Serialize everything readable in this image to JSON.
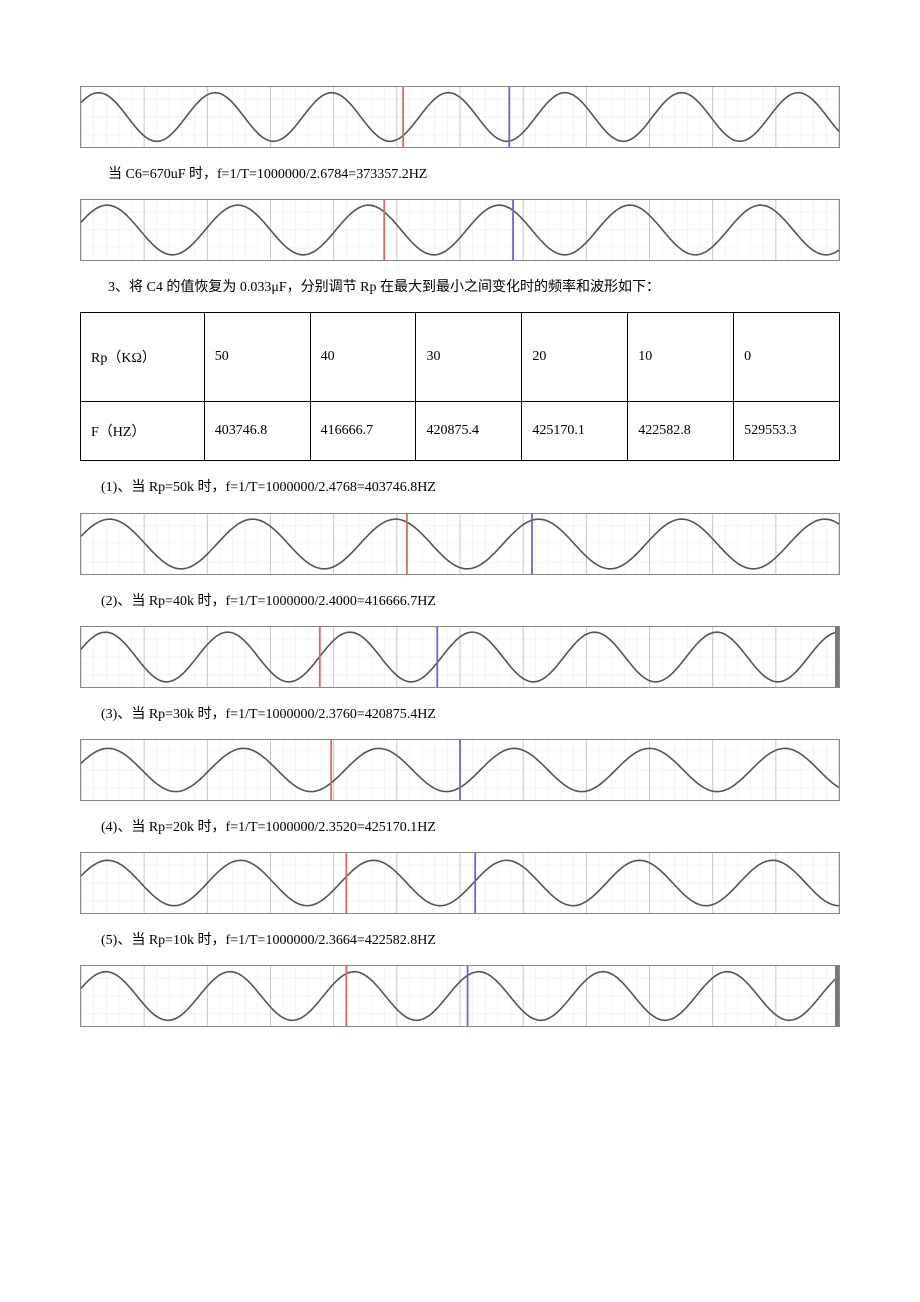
{
  "waveform_style": {
    "background_color": "#ffffff",
    "grid_major_color": "#c8c8c8",
    "grid_minor_color": "#e8e8e8",
    "wave_color": "#555555",
    "cursor1_color": "#e06666",
    "cursor2_color": "#6666e0",
    "wave_stroke_width": 1.6,
    "cursor_stroke_width": 1.8,
    "grid_stroke_width": 1,
    "minor_stroke_width": 0.5
  },
  "waveforms": {
    "wf_top": {
      "cycles": 6.5,
      "phase": 0.1,
      "amp": 0.9,
      "cursor1_x": 0.425,
      "cursor2_x": 0.565,
      "right_edge": false
    },
    "wf_c670": {
      "cycles": 5.8,
      "phase": 0.05,
      "amp": 0.92,
      "cursor1_x": 0.4,
      "cursor2_x": 0.57,
      "right_edge": false
    },
    "wf_rp50": {
      "cycles": 5.3,
      "phase": 0.05,
      "amp": 0.92,
      "cursor1_x": 0.43,
      "cursor2_x": 0.595,
      "right_edge": false
    },
    "wf_rp40": {
      "cycles": 6.2,
      "phase": 0.05,
      "amp": 0.92,
      "cursor1_x": 0.315,
      "cursor2_x": 0.47,
      "right_edge": true
    },
    "wf_rp30": {
      "cycles": 5.6,
      "phase": 0.05,
      "amp": 0.8,
      "cursor1_x": 0.33,
      "cursor2_x": 0.5,
      "right_edge": false
    },
    "wf_rp20": {
      "cycles": 5.7,
      "phase": 0.05,
      "amp": 0.84,
      "cursor1_x": 0.35,
      "cursor2_x": 0.52,
      "right_edge": false
    },
    "wf_rp10": {
      "cycles": 6.1,
      "phase": 0.05,
      "amp": 0.9,
      "cursor1_x": 0.35,
      "cursor2_x": 0.51,
      "right_edge": true
    }
  },
  "line_c670": "当 C6=670uF 时，f=1/T=1000000/2.6784=373357.2HZ",
  "para3": "3、将 C4 的值恢复为 0.033μF，分别调节 Rp 在最大到最小之间变化时的频率和波形如下：",
  "table": {
    "header_label": "Rp（KΩ）",
    "value_label": "F（HZ）",
    "columns": [
      "50",
      "40",
      "30",
      "20",
      "10",
      "0"
    ],
    "values": [
      "403746.8",
      "416666.7",
      "420875.4",
      "425170.1",
      "422582.8",
      "529553.3"
    ],
    "col0_width_pct": 14,
    "coln_width_pct": 14.33
  },
  "line_rp50": "(1)、当 Rp=50k 时，f=1/T=1000000/2.4768=403746.8HZ",
  "line_rp40": "(2)、当 Rp=40k 时，f=1/T=1000000/2.4000=416666.7HZ",
  "line_rp30": "(3)、当 Rp=30k 时，f=1/T=1000000/2.3760=420875.4HZ",
  "line_rp20": "(4)、当 Rp=20k 时，f=1/T=1000000/2.3520=425170.1HZ",
  "line_rp10": "(5)、当 Rp=10k 时，f=1/T=1000000/2.3664=422582.8HZ"
}
